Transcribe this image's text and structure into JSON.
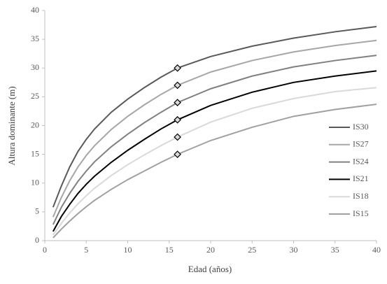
{
  "chart_data": {
    "type": "line",
    "x_label": "Edad (años)",
    "y_label": "Altura dominante (m)",
    "x": [
      1,
      2,
      3,
      4,
      5,
      6,
      8,
      10,
      12,
      14,
      16,
      20,
      25,
      30,
      35,
      40
    ],
    "series": [
      {
        "name": "IS30",
        "color": "#595959",
        "values": [
          5.8,
          9.5,
          12.8,
          15.5,
          17.6,
          19.4,
          22.3,
          24.6,
          26.6,
          28.4,
          30.0,
          32.0,
          33.8,
          35.2,
          36.3,
          37.2
        ]
      },
      {
        "name": "IS27",
        "color": "#a6a6a6",
        "values": [
          4.1,
          7.5,
          10.4,
          12.8,
          14.8,
          16.5,
          19.3,
          21.6,
          23.6,
          25.4,
          27.0,
          29.3,
          31.3,
          32.8,
          33.9,
          34.8
        ]
      },
      {
        "name": "IS24",
        "color": "#808080",
        "values": [
          2.8,
          5.8,
          8.2,
          10.3,
          12.1,
          13.7,
          16.3,
          18.5,
          20.5,
          22.3,
          24.0,
          26.4,
          28.6,
          30.2,
          31.3,
          32.2
        ]
      },
      {
        "name": "IS21",
        "color": "#000000",
        "values": [
          1.6,
          4.2,
          6.3,
          8.2,
          9.8,
          11.2,
          13.6,
          15.7,
          17.6,
          19.4,
          21.0,
          23.5,
          25.8,
          27.5,
          28.6,
          29.5
        ]
      },
      {
        "name": "IS18",
        "color": "#d9d9d9",
        "values": [
          1.0,
          3.0,
          4.8,
          6.4,
          7.8,
          9.1,
          11.3,
          13.2,
          14.9,
          16.5,
          18.0,
          20.6,
          23.0,
          24.7,
          25.9,
          26.6
        ]
      },
      {
        "name": "IS15",
        "color": "#a0a0a0",
        "values": [
          0.5,
          2.0,
          3.4,
          4.7,
          5.9,
          7.0,
          8.9,
          10.6,
          12.1,
          13.6,
          15.0,
          17.4,
          19.7,
          21.6,
          22.8,
          23.7
        ]
      }
    ],
    "marker_x": 16,
    "xlim": [
      0,
      40
    ],
    "xticks": [
      0,
      5,
      10,
      15,
      20,
      25,
      30,
      35,
      40
    ],
    "ylim": [
      0,
      40
    ],
    "yticks": [
      0,
      5,
      10,
      15,
      20,
      25,
      30,
      35,
      40
    ],
    "legend": "right"
  }
}
